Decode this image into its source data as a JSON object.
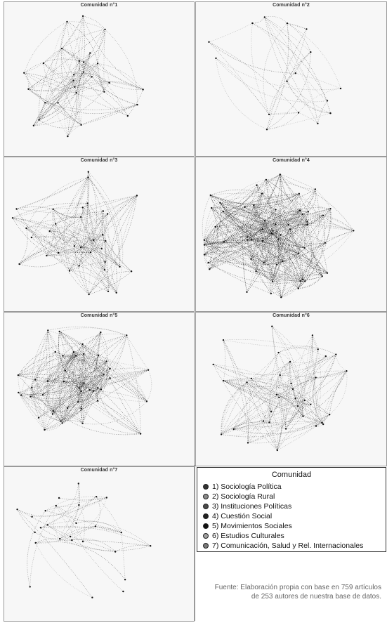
{
  "panels": [
    {
      "title": "Comunidad n°1",
      "seed": 11,
      "nodes": 28,
      "edges": 130,
      "intensity": 0.55
    },
    {
      "title": "Comunidad n°2",
      "seed": 22,
      "nodes": 16,
      "edges": 45,
      "intensity": 0.5
    },
    {
      "title": "Comunidad n°3",
      "seed": 33,
      "nodes": 34,
      "edges": 160,
      "intensity": 0.55
    },
    {
      "title": "Comunidad n°4",
      "seed": 44,
      "nodes": 60,
      "edges": 420,
      "intensity": 0.85
    },
    {
      "title": "Comunidad n°5",
      "seed": 55,
      "nodes": 46,
      "edges": 300,
      "intensity": 0.6
    },
    {
      "title": "Comunidad n°6",
      "seed": 66,
      "nodes": 36,
      "edges": 170,
      "intensity": 0.5
    },
    {
      "title": "Comunidad n°7",
      "seed": 77,
      "nodes": 26,
      "edges": 50,
      "intensity": 0.5
    }
  ],
  "legend": {
    "title": "Comunidad",
    "items": [
      {
        "label": "1) Sociología Política",
        "color": "#333333"
      },
      {
        "label": "2) Sociología Rural",
        "color": "#8a8a8a"
      },
      {
        "label": "3) Instituciones Políticas",
        "color": "#4a4a4a"
      },
      {
        "label": "4) Cuestión Social",
        "color": "#222222"
      },
      {
        "label": "5) Movimientos Sociales",
        "color": "#111111"
      },
      {
        "label": "6) Estudios Culturales",
        "color": "#a0a0a0"
      },
      {
        "label": "7) Comunicación, Salud  y Rel. Internacionales",
        "color": "#7a7a7a"
      }
    ]
  },
  "source": {
    "text": "Fuente: Elaboración propia con base en 759 artículos de 253 autores de nuestra base de datos."
  }
}
